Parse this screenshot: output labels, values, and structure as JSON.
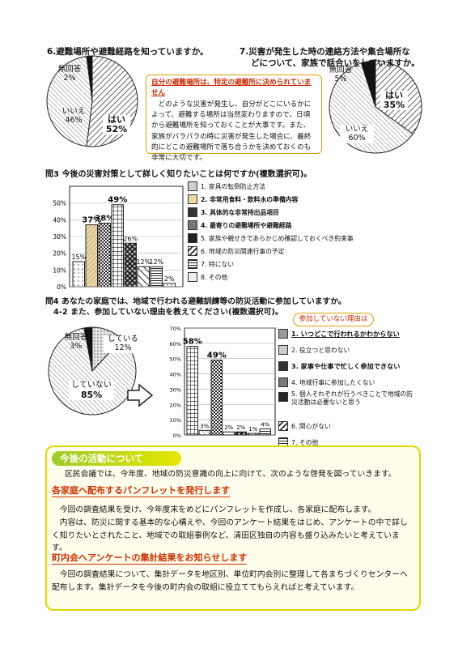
{
  "q6": {
    "title": "6.避難場所や避難経路を知っていますか。",
    "label_noanswer": "無回答",
    "pct_noanswer": "2%",
    "label_no": "いいえ",
    "pct_no": "46%",
    "label_yes": "はい",
    "pct_yes": "52%"
  },
  "q7": {
    "title_line1": "7.災害が発生した時の連絡方法や集合場所な",
    "title_line2": "どについて、家族で話合いをしていますか。",
    "label_noanswer": "無回答",
    "pct_noanswer": "5%",
    "label_yes": "はい",
    "pct_yes": "35%",
    "label_no": "いいえ",
    "pct_no": "60%"
  },
  "note": {
    "title": "自分の避難場所は、特定の避難所に決められていません",
    "body": "どのような災害が発生し、自分がどこにいるかによって、避難する場所は当然変わりますので、日頃から避難場所を知っておくことが大事です。また、家族がバラバラの時に災害が発生した場合に、最終的にどこの避難場所で落ち合うかを決めておくのも非常に大切です。"
  },
  "q3": {
    "title": "問3 今後の災害対策として詳しく知りたいことは何ですか(複数選択可)。",
    "legend": [
      "1. 家具の転倒防止方法",
      "2. 非常用食料・飲料水の準備内容",
      "3. 具体的な非常持出品項目",
      "4. 最寄りの避難場所や避難経路",
      "5. 家族や親せきであらかじめ確認しておくべき約束事",
      "6. 地域の防災関連行事の予定",
      "7. 特にない",
      "8. その他"
    ],
    "value_labels": [
      "15%",
      "37%",
      "38%",
      "49%",
      "26%",
      "12%",
      "12%",
      "2%"
    ],
    "yticks": [
      "50%",
      "40%",
      "30%",
      "20%",
      "10%",
      "0%"
    ]
  },
  "q4": {
    "title_line1": "問4 あなたの家庭では、地域で行われる避難訓練等の防災活動に参加していますか。",
    "title_line2": "4-2 また、参加していない理由を教えてください(複数選択可)。",
    "label_noanswer": "無回答",
    "pct_noanswer": "3%",
    "label_yes": "している",
    "pct_yes": "12%",
    "label_no": "していない",
    "pct_no": "85%",
    "reason_pill": "参加していない理由は",
    "legend": [
      "1. いつどこで行われるかわからない",
      "2. 役立つと思わない",
      "3. 家事や仕事で忙しく参加できない",
      "4. 地域行事に参加したくない",
      "5. 個人それぞれが行うべきことで地域の防災活動は必要ないと思う",
      "6. 関心がない",
      "7. その他"
    ],
    "value_labels": [
      "58%",
      "3%",
      "49%",
      "2%",
      "2%",
      "1%",
      "4%"
    ],
    "yticks": [
      "70%",
      "60%",
      "50%",
      "40%",
      "30%",
      "20%",
      "10%",
      "0%"
    ]
  },
  "chart_data": [
    {
      "type": "pie",
      "title": "6.避難場所や避難経路を知っていますか。",
      "labels": [
        "はい",
        "いいえ",
        "無回答"
      ],
      "values": [
        52,
        46,
        2
      ]
    },
    {
      "type": "pie",
      "title": "7.災害が発生した時の連絡方法や集合場所などについて、家族で話合いをしていますか。",
      "labels": [
        "はい",
        "いいえ",
        "無回答"
      ],
      "values": [
        35,
        60,
        5
      ]
    },
    {
      "type": "bar",
      "title": "問3 今後の災害対策として詳しく知りたいことは何ですか(複数選択可)。",
      "categories": [
        "1",
        "2",
        "3",
        "4",
        "5",
        "6",
        "7",
        "8"
      ],
      "values": [
        15,
        37,
        38,
        49,
        26,
        12,
        12,
        2
      ],
      "ylim": [
        0,
        60
      ],
      "colors": [
        "#cfcfcf",
        "#e9c98a",
        "#8a8a8a",
        "#aaaaaa",
        "#555555",
        "#ffffff",
        "#ffffff",
        "#ffffff"
      ]
    },
    {
      "type": "pie",
      "title": "問4 あなたの家庭では、地域で行われる避難訓練等の防災活動に参加していますか。",
      "labels": [
        "している",
        "していない",
        "無回答"
      ],
      "values": [
        12,
        85,
        3
      ]
    },
    {
      "type": "bar",
      "title": "4-2 また、参加していない理由を教えてください(複数選択可)。",
      "categories": [
        "1",
        "2",
        "3",
        "4",
        "5",
        "6",
        "7"
      ],
      "values": [
        58,
        3,
        49,
        2,
        2,
        1,
        4
      ],
      "ylim": [
        0,
        70
      ]
    }
  ],
  "activity": {
    "title": "今後の活動について",
    "intro": "区民会議では、今年度、地域の防災意識の向上に向けて、次のような啓発を図っていきます。",
    "sub1": "各家庭へ配布するパンフレットを発行します",
    "p1a": "今回の調査結果を受け、今年度末をめどにパンフレットを作成し、各家庭に配布します。",
    "p1b": "内容は、防災に関する基本的な心構えや、今回のアンケート結果をはじめ、アンケートの中で詳しく知りたいとされたこと、地域での取組事例など、清田区独自の内容も盛り込みたいと考えています。",
    "sub2": "町内会へアンケートの集計結果をお知らせします",
    "p2": "今回の調査結果について、集計データを地区別、単位町内会別に整理して各まちづくりセンターへ配布します。集計データを今後の町内会の取組に役立ててもらえればと考えています。"
  }
}
